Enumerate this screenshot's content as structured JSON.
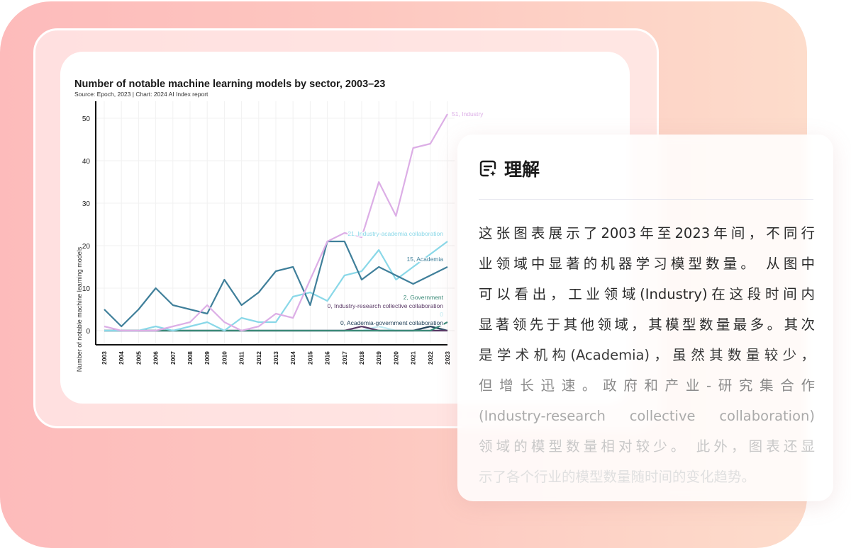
{
  "chart_data": {
    "type": "line",
    "title": "Number of notable machine learning models by sector, 2003–23",
    "subtitle": "Source: Epoch, 2023 | Chart: 2024 AI Index report",
    "ylabel": "Number of notable machine learning models",
    "xlabel": "",
    "ylim": [
      0,
      50
    ],
    "yticks": [
      0,
      10,
      20,
      30,
      40,
      50
    ],
    "grid": true,
    "x": [
      "2003",
      "2004",
      "2005",
      "2006",
      "2007",
      "2008",
      "2009",
      "2010",
      "2011",
      "2012",
      "2013",
      "2014",
      "2015",
      "2016",
      "2017",
      "2018",
      "2019",
      "2020",
      "2021",
      "2022",
      "2023"
    ],
    "series": [
      {
        "name": "Industry",
        "end_label": "51, Industry",
        "color": "#dcaee6",
        "values": [
          1,
          0,
          0,
          0,
          1,
          2,
          6,
          2,
          0,
          1,
          4,
          3,
          12,
          21,
          23,
          22,
          35,
          27,
          43,
          44,
          51
        ]
      },
      {
        "name": "Industry-academia collaboration",
        "end_label": "21, Industry-academia collaboration",
        "color": "#8ad8e8",
        "values": [
          0,
          0,
          0,
          1,
          0,
          1,
          2,
          0,
          3,
          2,
          2,
          8,
          9,
          7,
          13,
          14,
          19,
          12,
          15,
          18,
          21
        ]
      },
      {
        "name": "Academia",
        "end_label": "15, Academia",
        "color": "#3f7f9a",
        "values": [
          5,
          1,
          5,
          10,
          6,
          5,
          4,
          12,
          6,
          9,
          14,
          15,
          6,
          21,
          21,
          12,
          15,
          13,
          11,
          13,
          15
        ]
      },
      {
        "name": "Government",
        "end_label": "2, Government",
        "color": "#3b8a78",
        "values": [
          0,
          0,
          0,
          0,
          0,
          0,
          0,
          0,
          0,
          0,
          0,
          0,
          0,
          0,
          0,
          0,
          0,
          0,
          0,
          0,
          2
        ]
      },
      {
        "name": "Industry-research collective collaboration",
        "end_label": "0, Industry-research collective collaboration",
        "color": "#5a3a66",
        "values": [
          0,
          0,
          0,
          0,
          0,
          0,
          0,
          0,
          0,
          0,
          0,
          0,
          0,
          0,
          0,
          1,
          0,
          0,
          0,
          0,
          0
        ]
      },
      {
        "end_label": "0",
        "color": "#bfeaf2",
        "values": [
          0,
          0,
          0,
          0,
          0,
          0,
          0,
          0,
          0,
          0,
          0,
          0,
          0,
          0,
          0,
          0,
          1,
          0,
          0,
          0,
          0
        ]
      },
      {
        "name": "Academia-government collaboration",
        "end_label": "0, Academia-government collaboration",
        "color": "#23425a",
        "values": [
          0,
          0,
          0,
          0,
          0,
          0,
          0,
          0,
          0,
          0,
          0,
          0,
          0,
          0,
          0,
          0,
          0,
          0,
          0,
          1,
          0
        ]
      }
    ]
  },
  "panel": {
    "icon": "chat-sparkle-icon",
    "title": "理解",
    "lines": [
      "这张图表展示了2003年至2023年间，不同行",
      "业领域中显著的机器学习模型数量。 从图中",
      "可以看出，工业领域(Industry)在这段时间内",
      "显著领先于其他领域，其模型数量最多。其次",
      "是学术机构(Academia)，虽然其数量较少，",
      "但增长迅速。政府和产业-研究集合作",
      "(Industry-research collective collaboration)",
      "领域的模型数量相对较少。 此外，图表还显",
      "示了各个行业的模型数量随时间的变化趋势。"
    ],
    "line_colors": [
      "#2a2a2a",
      "#2a2a2a",
      "#2a2a2a",
      "#2e2e2e",
      "#3a3a3a",
      "#8a8a8a",
      "#aaaaaa",
      "#c8c8c8",
      "#e0e0e0"
    ]
  }
}
